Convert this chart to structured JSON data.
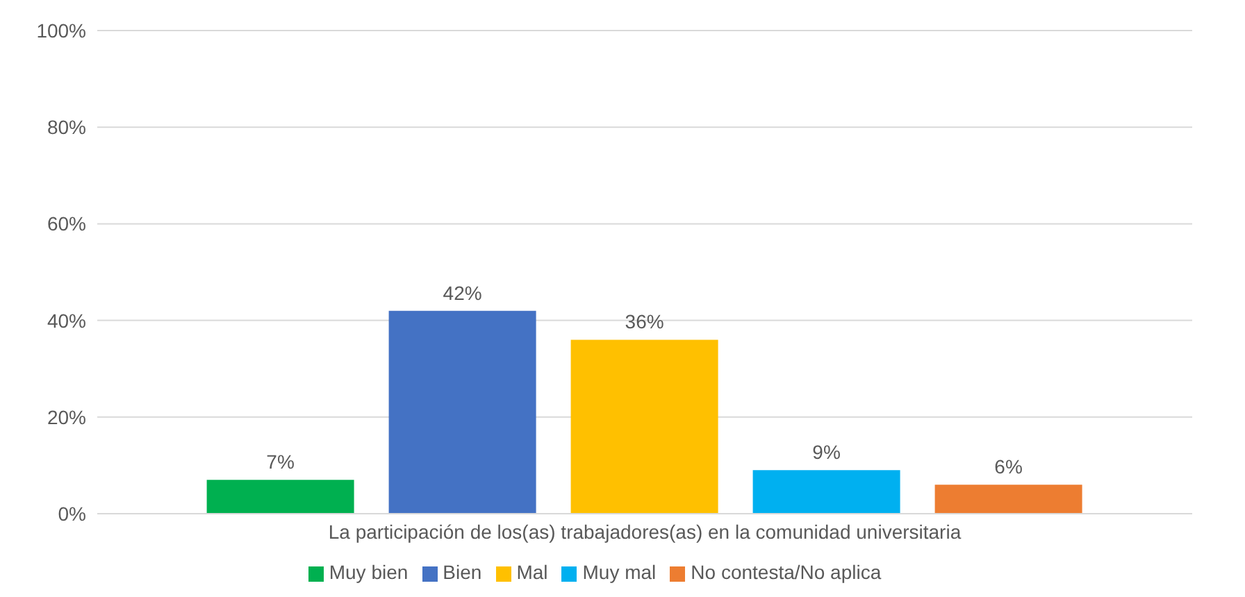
{
  "chart_data": {
    "type": "bar",
    "categories": [
      "La participación de los(as) trabajadores(as) en la comunidad universitaria"
    ],
    "series": [
      {
        "name": "Muy bien",
        "color": "#00b050",
        "values": [
          7
        ],
        "value_labels": [
          "7%"
        ]
      },
      {
        "name": "Bien",
        "color": "#4472c4",
        "values": [
          42
        ],
        "value_labels": [
          "42%"
        ]
      },
      {
        "name": "Mal",
        "color": "#ffc000",
        "values": [
          36
        ],
        "value_labels": [
          "36%"
        ]
      },
      {
        "name": "Muy mal",
        "color": "#00b0f0",
        "values": [
          9
        ],
        "value_labels": [
          "9%"
        ]
      },
      {
        "name": "No contesta/No aplica",
        "color": "#ed7d31",
        "values": [
          6
        ],
        "value_labels": [
          "6%"
        ]
      }
    ],
    "ylim": [
      0,
      100
    ],
    "yticks": [
      {
        "value": 0,
        "label": "0%"
      },
      {
        "value": 20,
        "label": "20%"
      },
      {
        "value": 40,
        "label": "40%"
      },
      {
        "value": 60,
        "label": "60%"
      },
      {
        "value": 80,
        "label": "80%"
      },
      {
        "value": 100,
        "label": "100%"
      }
    ],
    "grid": "y",
    "legend": "bottom"
  }
}
